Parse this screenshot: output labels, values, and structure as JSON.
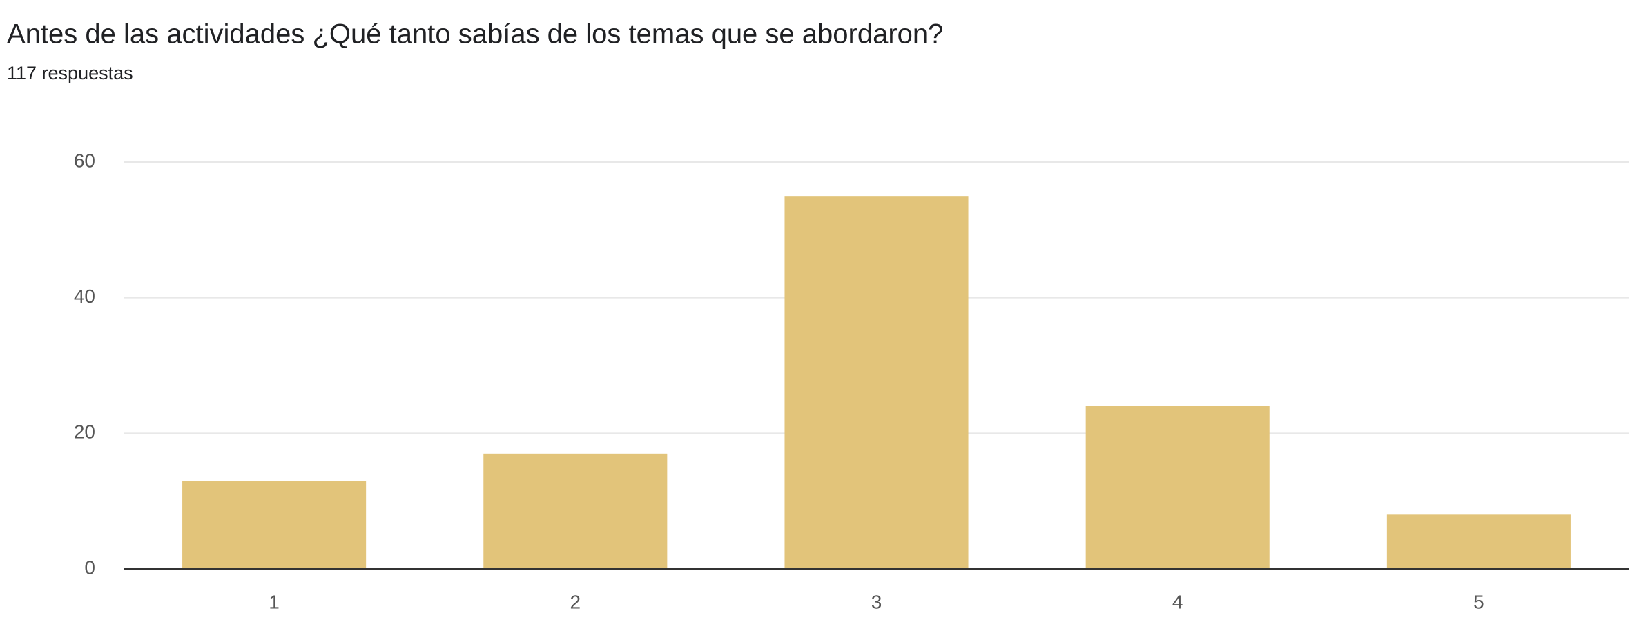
{
  "chart_data": {
    "type": "bar",
    "title": "Antes de las actividades ¿Qué tanto sabías de los temas que se abordaron?",
    "subtitle": "117 respuestas",
    "categories": [
      "1",
      "2",
      "3",
      "4",
      "5"
    ],
    "values": [
      13,
      17,
      55,
      24,
      8
    ],
    "color": "#e2c47a",
    "ylim": [
      0,
      60
    ],
    "yticks": [
      0,
      20,
      40,
      60
    ],
    "grid": true
  }
}
